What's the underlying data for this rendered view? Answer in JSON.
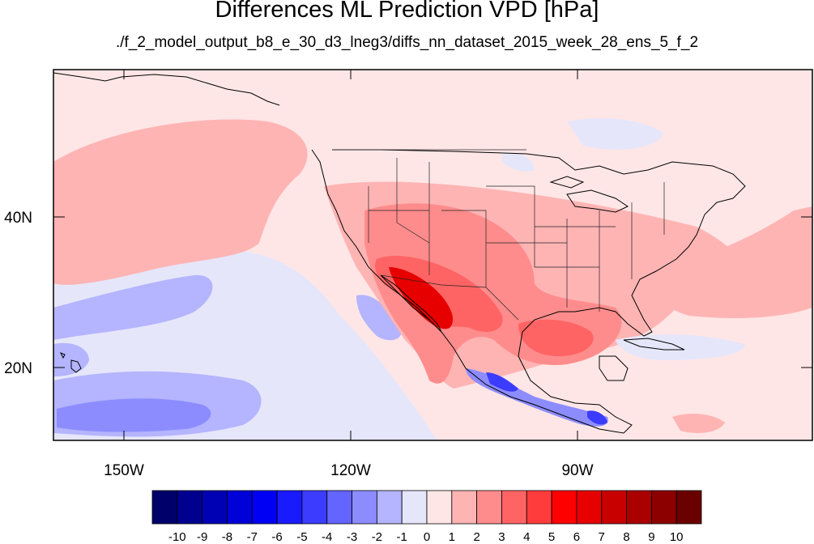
{
  "title": "Differences ML Prediction VPD [hPa]",
  "subtitle": "./f_2_model_output_b8_e_30_d3_lneg3/diffs_nn_dataset_2015_week_28_ens_5_f_2",
  "lon_ticks": [
    "150W",
    "120W",
    "90W"
  ],
  "lat_ticks": [
    "40N",
    "20N"
  ],
  "colorbar": {
    "labels": [
      "-10",
      "-9",
      "-8",
      "-7",
      "-6",
      "-5",
      "-4",
      "-3",
      "-2",
      "-1",
      "0",
      "1",
      "2",
      "3",
      "4",
      "5",
      "6",
      "7",
      "8",
      "9",
      "10"
    ],
    "colors": [
      "#00006b",
      "#000090",
      "#0000b5",
      "#0000d8",
      "#0000f5",
      "#1a1aff",
      "#3c3cff",
      "#6464ff",
      "#8c8cff",
      "#b4b4ff",
      "#e6e6fa",
      "#ffe6e6",
      "#ffb4b4",
      "#ff8c8c",
      "#ff6464",
      "#ff3c3c",
      "#ff0000",
      "#e60000",
      "#c80000",
      "#aa0000",
      "#8c0000",
      "#6b0000"
    ]
  },
  "palette": {
    "ocean_pink": "#ffe6e6",
    "light_red": "#ffb4b4",
    "mid_red": "#ff8c8c",
    "red": "#ff6464",
    "dark_red": "#e60000",
    "light_blue": "#e6e6fa",
    "mid_blue": "#b4b4ff",
    "blue": "#8c8cff",
    "deep_blue": "#3c3cff"
  }
}
